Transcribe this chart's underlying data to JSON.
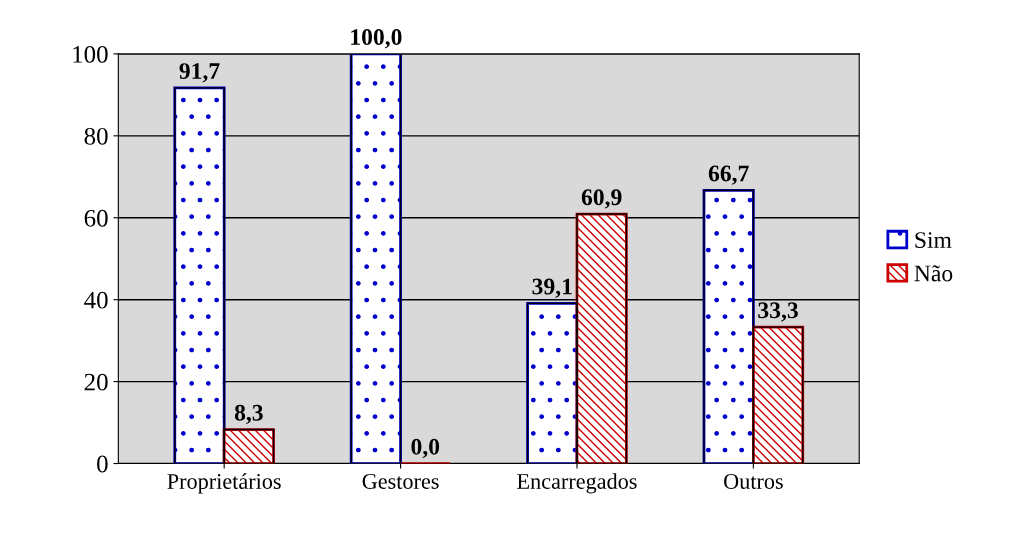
{
  "chart_data": {
    "type": "bar",
    "categories": [
      "Proprietários",
      "Gestores",
      "Encarregados",
      "Outros"
    ],
    "series": [
      {
        "name": "Sim",
        "color": "#0000cc",
        "values": [
          91.7,
          100.0,
          39.1,
          66.7
        ],
        "value_labels": [
          "91,7",
          "100,0",
          "39,1",
          "66,7"
        ]
      },
      {
        "name": "Não",
        "color": "#cc0000",
        "values": [
          8.3,
          0.0,
          60.9,
          33.3
        ],
        "value_labels": [
          "8,3",
          "0,0",
          "60,9",
          "33,3"
        ]
      }
    ],
    "ylim": [
      0,
      100
    ],
    "yticks": [
      0,
      20,
      40,
      60,
      80,
      100
    ],
    "grid": "y",
    "legend": "right"
  }
}
